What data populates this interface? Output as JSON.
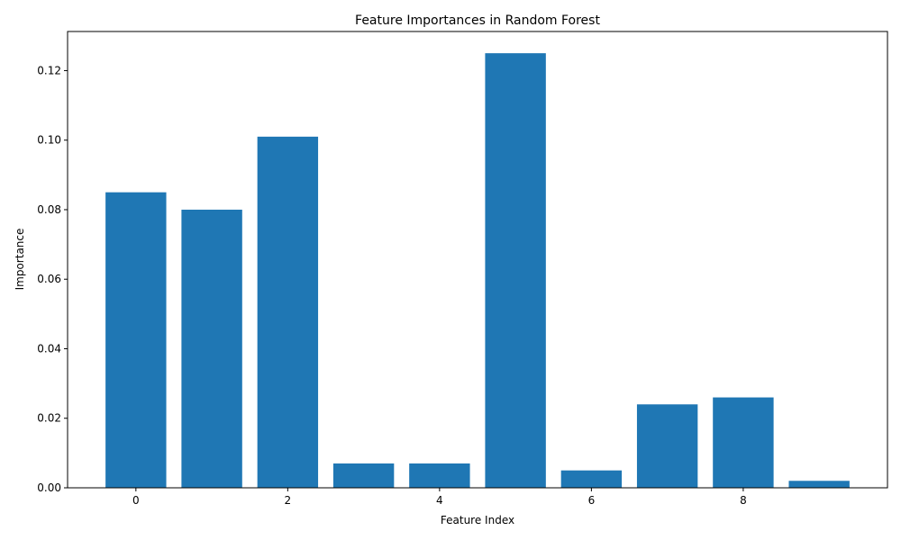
{
  "chart_data": {
    "type": "bar",
    "title": "Feature Importances in Random Forest",
    "xlabel": "Feature Index",
    "ylabel": "Importance",
    "x": [
      0,
      1,
      2,
      3,
      4,
      5,
      6,
      7,
      8,
      9
    ],
    "values": [
      0.085,
      0.08,
      0.101,
      0.007,
      0.007,
      0.125,
      0.005,
      0.024,
      0.026,
      0.002
    ],
    "xlim": [
      -0.9,
      9.9
    ],
    "ylim": [
      0,
      0.13125
    ],
    "xticks": [
      0,
      2,
      4,
      6,
      8
    ],
    "xtick_labels": [
      "0",
      "2",
      "4",
      "6",
      "8"
    ],
    "yticks": [
      0,
      0.02,
      0.04,
      0.06,
      0.08,
      0.1,
      0.12
    ],
    "ytick_labels": [
      "0.00",
      "0.02",
      "0.04",
      "0.06",
      "0.08",
      "0.10",
      "0.12"
    ],
    "bar_color": "#1f77b4",
    "grid": false,
    "legend": "none"
  }
}
